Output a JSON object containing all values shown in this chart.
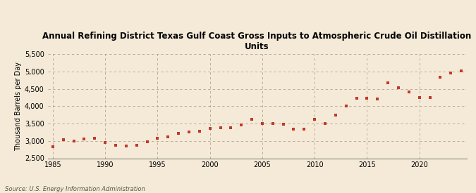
{
  "title_line1": "Annual Refining District Texas Gulf Coast Gross Inputs to Atmospheric Crude Oil Distillation",
  "title_line2": "Units",
  "ylabel": "Thousand Barrels per Day",
  "source": "Source: U.S. Energy Information Administration",
  "background_color": "#f5ead8",
  "marker_color": "#c0392b",
  "xlim": [
    1984.5,
    2024.5
  ],
  "ylim": [
    2500,
    5500
  ],
  "yticks": [
    2500,
    3000,
    3500,
    4000,
    4500,
    5000,
    5500
  ],
  "xticks": [
    1985,
    1990,
    1995,
    2000,
    2005,
    2010,
    2015,
    2020
  ],
  "years": [
    1985,
    1986,
    1987,
    1988,
    1989,
    1990,
    1991,
    1992,
    1993,
    1994,
    1995,
    1996,
    1997,
    1998,
    1999,
    2000,
    2001,
    2002,
    2003,
    2004,
    2005,
    2006,
    2007,
    2008,
    2009,
    2010,
    2011,
    2012,
    2013,
    2014,
    2015,
    2016,
    2017,
    2018,
    2019,
    2020,
    2021,
    2022,
    2023,
    2024
  ],
  "values": [
    2830,
    3030,
    3000,
    3060,
    3080,
    2960,
    2870,
    2860,
    2870,
    2980,
    3070,
    3110,
    3220,
    3250,
    3270,
    3350,
    3370,
    3380,
    3460,
    3620,
    3510,
    3500,
    3470,
    3340,
    3330,
    3620,
    3510,
    3750,
    4000,
    4220,
    4220,
    4200,
    4670,
    4540,
    4400,
    4250,
    4250,
    4830,
    4960,
    5020
  ]
}
